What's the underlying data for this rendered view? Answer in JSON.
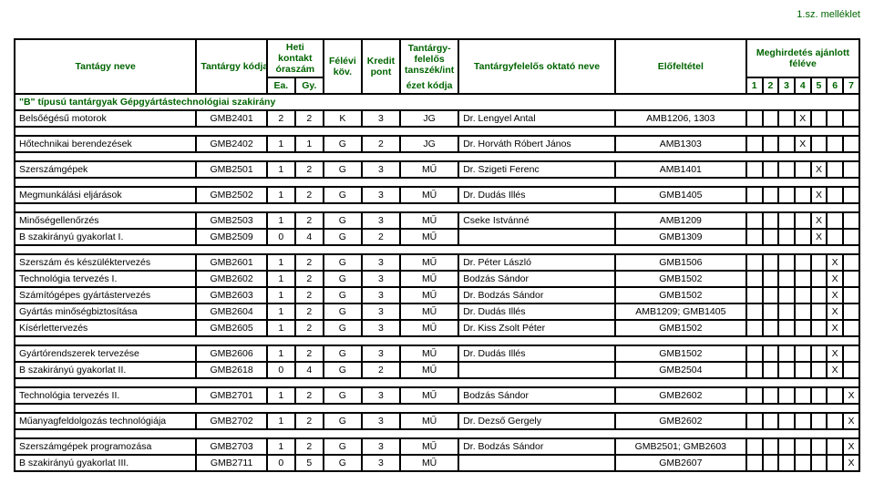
{
  "attachment": "1.sz. melléklet",
  "header": {
    "name": "Tantágy neve",
    "code": "Tantárgy kódja",
    "week_top": "Heti kontakt óraszám",
    "ea": "Ea.",
    "gy": "Gy.",
    "kov": "Félévi köv.",
    "kredit": "Kredit pont",
    "ezet_top": "Tantárgy-felelős tanszék/int",
    "ezet_bot": "ézet kódja",
    "okt": "Tantárgyfelelős oktató neve",
    "elo": "Előfeltétel",
    "meg": "Meghirdetés ajánlott féléve",
    "s1": "1",
    "s2": "2",
    "s3": "3",
    "s4": "4",
    "s5": "5",
    "s6": "6",
    "s7": "7"
  },
  "section": "\"B\" típusú tantárgyak Gépgyártástechnológiai szakirány",
  "r1": {
    "n": "Belsőégésű motorok",
    "c": "GMB2401",
    "e": "2",
    "g": "2",
    "k": "K",
    "kp": "3",
    "ez": "JG",
    "o": "Dr. Lengyel Antal",
    "el": "AMB1206, 1303",
    "x": 4
  },
  "r2": {
    "n": "Hőtechnikai berendezések",
    "c": "GMB2402",
    "e": "1",
    "g": "1",
    "k": "G",
    "kp": "2",
    "ez": "JG",
    "o": "Dr. Horváth Róbert János",
    "el": "AMB1303",
    "x": 4
  },
  "r3": {
    "n": "Szerszámgépek",
    "c": "GMB2501",
    "e": "1",
    "g": "2",
    "k": "G",
    "kp": "3",
    "ez": "MŰ",
    "o": "Dr. Szigeti Ferenc",
    "el": "AMB1401",
    "x": 5
  },
  "r4": {
    "n": "Megmunkálási eljárások",
    "c": "GMB2502",
    "e": "1",
    "g": "2",
    "k": "G",
    "kp": "3",
    "ez": "MŰ",
    "o": "Dr. Dudás Illés",
    "el": "GMB1405",
    "x": 5
  },
  "r5": {
    "n": "Minőségellenőrzés",
    "c": "GMB2503",
    "e": "1",
    "g": "2",
    "k": "G",
    "kp": "3",
    "ez": "MŰ",
    "o": "Cseke Istvánné",
    "el": "AMB1209",
    "x": 5
  },
  "r6": {
    "n": "B szakirányú gyakorlat I.",
    "c": "GMB2509",
    "e": "0",
    "g": "4",
    "k": "G",
    "kp": "2",
    "ez": "MŰ",
    "o": "",
    "el": "GMB1309",
    "x": 5
  },
  "r7": {
    "n": "Szerszám és készüléktervezés",
    "c": "GMB2601",
    "e": "1",
    "g": "2",
    "k": "G",
    "kp": "3",
    "ez": "MŰ",
    "o": "Dr. Péter László",
    "el": "GMB1506",
    "x": 6
  },
  "r8": {
    "n": "Technológia tervezés I.",
    "c": "GMB2602",
    "e": "1",
    "g": "2",
    "k": "G",
    "kp": "3",
    "ez": "MŰ",
    "o": "Bodzás Sándor",
    "el": "GMB1502",
    "x": 6
  },
  "r9": {
    "n": "Számítógépes gyártástervezés",
    "c": "GMB2603",
    "e": "1",
    "g": "2",
    "k": "G",
    "kp": "3",
    "ez": "MŰ",
    "o": "Dr. Bodzás Sándor",
    "el": "GMB1502",
    "x": 6
  },
  "r10": {
    "n": "Gyártás minőségbiztosítása",
    "c": "GMB2604",
    "e": "1",
    "g": "2",
    "k": "G",
    "kp": "3",
    "ez": "MŰ",
    "o": "Dr. Dudás Illés",
    "el": "AMB1209; GMB1405",
    "x": 6
  },
  "r11": {
    "n": "Kísérlettervezés",
    "c": "GMB2605",
    "e": "1",
    "g": "2",
    "k": "G",
    "kp": "3",
    "ez": "MŰ",
    "o": "Dr. Kiss Zsolt Péter",
    "el": "GMB1502",
    "x": 6
  },
  "r12": {
    "n": "Gyártórendszerek tervezése",
    "c": "GMB2606",
    "e": "1",
    "g": "2",
    "k": "G",
    "kp": "3",
    "ez": "MŰ",
    "o": "Dr. Dudás Illés",
    "el": "GMB1502",
    "x": 6
  },
  "r13": {
    "n": "B szakirányú gyakorlat II.",
    "c": "GMB2618",
    "e": "0",
    "g": "4",
    "k": "G",
    "kp": "2",
    "ez": "MŰ",
    "o": "",
    "el": "GMB2504",
    "x": 6
  },
  "r14": {
    "n": "Technológia tervezés II.",
    "c": "GMB2701",
    "e": "1",
    "g": "2",
    "k": "G",
    "kp": "3",
    "ez": "MŰ",
    "o": "Bodzás Sándor",
    "el": "GMB2602",
    "x": 7
  },
  "r15": {
    "n": "Műanyagfeldolgozás technológiája",
    "c": "GMB2702",
    "e": "1",
    "g": "2",
    "k": "G",
    "kp": "3",
    "ez": "MŰ",
    "o": "Dr. Dezső Gergely",
    "el": "GMB2602",
    "x": 7
  },
  "r16": {
    "n": "Szerszámgépek programozása",
    "c": "GMB2703",
    "e": "1",
    "g": "2",
    "k": "G",
    "kp": "3",
    "ez": "MŰ",
    "o": "Dr. Bodzás Sándor",
    "el": "GMB2501; GMB2603",
    "x": 7
  },
  "r17": {
    "n": "B szakirányú gyakorlat III.",
    "c": "GMB2711",
    "e": "0",
    "g": "5",
    "k": "G",
    "kp": "3",
    "ez": "MŰ",
    "o": "",
    "el": "GMB2607",
    "x": 7
  },
  "mark": "X"
}
